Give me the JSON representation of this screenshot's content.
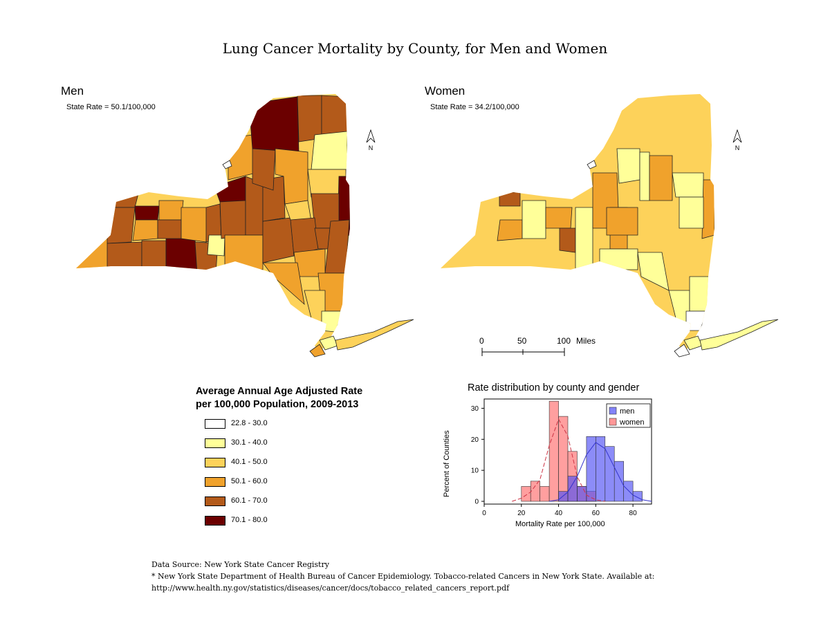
{
  "page_title": "Lung Cancer Mortality by County, for Men and Women",
  "maps": [
    {
      "title": "Men",
      "state_rate": "State Rate = 50.1/100,000",
      "north": "N"
    },
    {
      "title": "Women",
      "state_rate": "State Rate = 34.2/100,000",
      "north": "N"
    }
  ],
  "scalebar": {
    "labels": [
      "0",
      "50",
      "100"
    ],
    "unit": "Miles"
  },
  "legend": {
    "title_line1": "Average Annual Age Adjusted Rate",
    "title_line2": "per 100,000 Population, 2009-2013",
    "classes": [
      {
        "label": "22.8 - 30.0",
        "color": "#ffffff"
      },
      {
        "label": "30.1 - 40.0",
        "color": "#ffff99"
      },
      {
        "label": "40.1 - 50.0",
        "color": "#fdd25a"
      },
      {
        "label": "50.1 - 60.0",
        "color": "#f0a22c"
      },
      {
        "label": "60.1 - 70.0",
        "color": "#b35a1a"
      },
      {
        "label": "70.1 - 80.0",
        "color": "#6b0000"
      }
    ]
  },
  "chart_data": {
    "type": "histogram",
    "title": "Rate distribution by county and gender",
    "xlabel": "Mortality Rate per 100,000",
    "ylabel": "Percent of Counties",
    "xlim": [
      0,
      90
    ],
    "ylim": [
      0,
      33
    ],
    "xticks": [
      "0",
      "20",
      "40",
      "60",
      "80"
    ],
    "yticks": [
      "0",
      "10",
      "20",
      "30"
    ],
    "bin_width": 5,
    "series": [
      {
        "name": "men",
        "color": "#4f4ff5",
        "bins": [
          {
            "x0": 40,
            "value": 3.2
          },
          {
            "x0": 45,
            "value": 8.1
          },
          {
            "x0": 50,
            "value": 4.8
          },
          {
            "x0": 55,
            "value": 20.9
          },
          {
            "x0": 60,
            "value": 20.9
          },
          {
            "x0": 65,
            "value": 17.7
          },
          {
            "x0": 70,
            "value": 12.9
          },
          {
            "x0": 75,
            "value": 6.5
          },
          {
            "x0": 80,
            "value": 3.2
          }
        ],
        "density": [
          [
            35,
            0
          ],
          [
            40,
            0.5
          ],
          [
            45,
            3
          ],
          [
            50,
            8
          ],
          [
            55,
            15
          ],
          [
            60,
            19
          ],
          [
            65,
            17
          ],
          [
            70,
            11
          ],
          [
            75,
            5
          ],
          [
            80,
            2
          ],
          [
            85,
            0.5
          ],
          [
            90,
            0
          ]
        ]
      },
      {
        "name": "women",
        "color": "#ff6b6b",
        "bins": [
          {
            "x0": 20,
            "value": 4.8
          },
          {
            "x0": 25,
            "value": 6.5
          },
          {
            "x0": 30,
            "value": 4.8
          },
          {
            "x0": 35,
            "value": 32.3
          },
          {
            "x0": 40,
            "value": 27.4
          },
          {
            "x0": 45,
            "value": 16.1
          },
          {
            "x0": 50,
            "value": 4.8
          },
          {
            "x0": 55,
            "value": 3.2
          }
        ],
        "density": [
          [
            15,
            0
          ],
          [
            20,
            1
          ],
          [
            25,
            3
          ],
          [
            30,
            7
          ],
          [
            35,
            18
          ],
          [
            40,
            26.5
          ],
          [
            45,
            21
          ],
          [
            50,
            8
          ],
          [
            55,
            2
          ],
          [
            60,
            0.5
          ],
          [
            65,
            0
          ]
        ]
      }
    ]
  },
  "source": {
    "line1": "Data Source: New York State Cancer Registry",
    "line2": "* New York State Department of Health Bureau of Cancer Epidemiology. Tobacco-related Cancers in New York State.  Available at:",
    "line3": "http://www.health.ny.gov/statistics/diseases/cancer/docs/tobacco_related_cancers_report.pdf"
  }
}
